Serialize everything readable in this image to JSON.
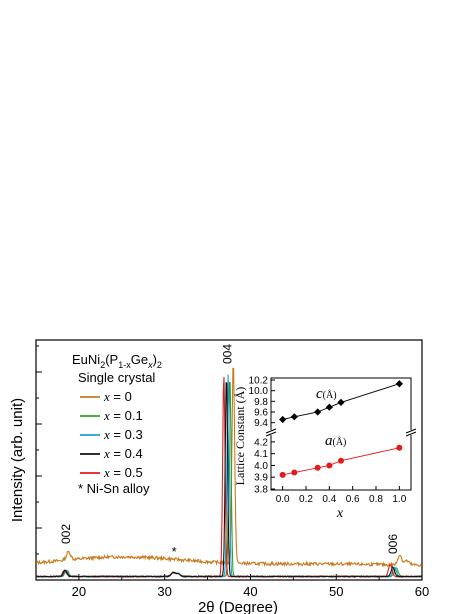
{
  "chart_data": [
    {
      "type": "line",
      "title": "EuNi2(P1-xGex)2",
      "title_parts": {
        "a": "EuNi",
        "b": "2",
        "c": "(P",
        "d": "1-x",
        "e": "Ge",
        "f": "x",
        "g": ")",
        "h": "2"
      },
      "subtitle": "Single crystal",
      "xlabel": "2θ (Degree)",
      "ylabel": "Intensity (arb. unit)",
      "xlim": [
        15,
        60
      ],
      "xticks": [
        "20",
        "30",
        "40",
        "50",
        "60"
      ],
      "legend_placement": "top-left",
      "footnote": "* Ni-Sn alloy",
      "peak_labels": [
        {
          "text": "002",
          "x": 18.5
        },
        {
          "text": "004",
          "x": 37.3
        },
        {
          "text": "006",
          "x": 56.6
        }
      ],
      "impurity_marker": {
        "text": "*",
        "x": 31.1
      },
      "series": [
        {
          "name": "x = 0",
          "legend_var": "x",
          "legend_val": " = 0",
          "color": "#c87a1e",
          "peak002": 18.8,
          "peak004": 38.0,
          "peak006": 57.4
        },
        {
          "name": "x = 0.1",
          "legend_var": "x",
          "legend_val": " = 0.1",
          "color": "#2ca02c",
          "peak002": 18.6,
          "peak004": 37.6,
          "peak006": 57.0
        },
        {
          "name": "x = 0.3",
          "legend_var": "x",
          "legend_val": " = 0.3",
          "color": "#1f9fd6",
          "peak002": 18.5,
          "peak004": 37.4,
          "peak006": 56.8
        },
        {
          "name": "x = 0.4",
          "legend_var": "x",
          "legend_val": " = 0.4",
          "color": "#111111",
          "peak002": 18.4,
          "peak004": 37.2,
          "peak006": 56.6
        },
        {
          "name": "x = 0.5",
          "legend_var": "x",
          "legend_val": " = 0.5",
          "color": "#e41a1c",
          "peak002": 18.3,
          "peak004": 36.9,
          "peak006": 56.3
        }
      ]
    },
    {
      "type": "scatter",
      "xlabel": "x",
      "ylabel": "Lattice Constant (Å)",
      "xlim": [
        -0.1,
        1.1
      ],
      "xticks": [
        "0.0",
        "0.2",
        "0.4",
        "0.6",
        "0.8",
        "1.0"
      ],
      "yticks_upper": [
        "9.4",
        "9.6",
        "9.8",
        "10.0",
        "10.2"
      ],
      "yticks_lower": [
        "3.8",
        "3.9",
        "4.0",
        "4.1",
        "4.2"
      ],
      "ylim_upper": [
        9.3,
        10.2
      ],
      "ylim_lower": [
        3.8,
        4.25
      ],
      "x": [
        0.0,
        0.1,
        0.3,
        0.4,
        0.5,
        1.0
      ],
      "series": [
        {
          "name": "c",
          "label_var": "c",
          "label_unit": "(Å)",
          "color": "#000000",
          "marker": "diamond",
          "values": [
            9.46,
            9.51,
            9.6,
            9.69,
            9.78,
            10.13
          ]
        },
        {
          "name": "a",
          "label_var": "a",
          "label_unit": "(Å)",
          "color": "#e41a1c",
          "marker": "circle",
          "values": [
            3.92,
            3.94,
            3.98,
            4.0,
            4.04,
            4.15
          ]
        }
      ]
    }
  ]
}
